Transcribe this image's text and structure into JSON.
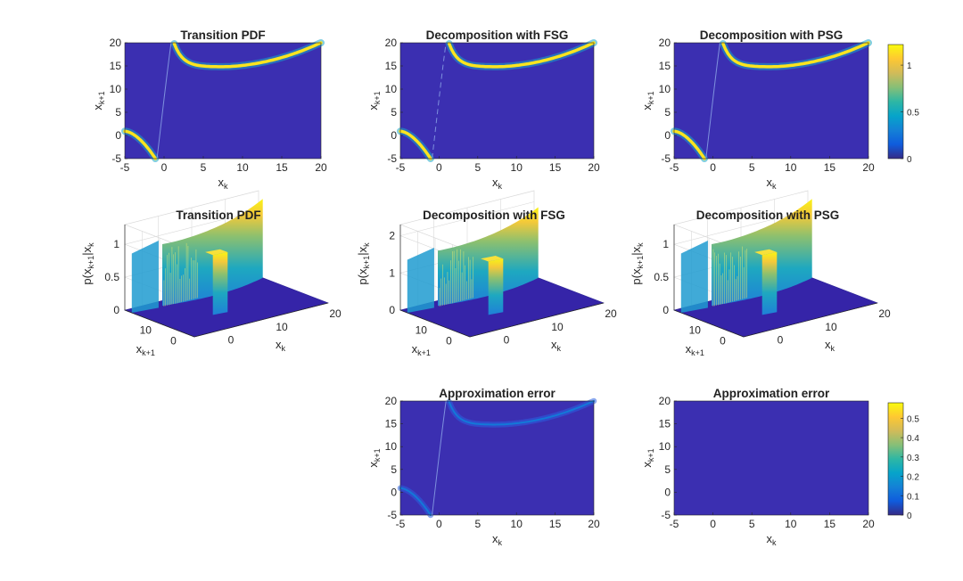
{
  "colors": {
    "background": "#3b2fb1",
    "gridline": "#d9d9d9",
    "axis": "#262626",
    "parula": [
      "#352a87",
      "#0f5cdd",
      "#1481d6",
      "#06a4ca",
      "#2eb7a4",
      "#87bf77",
      "#d1bb59",
      "#fec832",
      "#f9fb0e"
    ]
  },
  "chart_data": [
    {
      "id": "r1c1",
      "type": "heatmap",
      "title": "Transition PDF",
      "xlabel": "x_k",
      "ylabel": "x_k+1",
      "xlim": [
        -5,
        20
      ],
      "ylim": [
        -5,
        20
      ],
      "xticks": [
        "-5",
        "0",
        "5",
        "10",
        "15",
        "20"
      ],
      "yticks": [
        "-5",
        "0",
        "5",
        "10",
        "15",
        "20"
      ],
      "curve": "transition",
      "peak": 1.15
    },
    {
      "id": "r1c2",
      "type": "heatmap",
      "title": "Decomposition with FSG",
      "xlabel": "x_k",
      "ylabel": "x_k+1",
      "xlim": [
        -5,
        20
      ],
      "ylim": [
        -5,
        20
      ],
      "xticks": [
        "-5",
        "0",
        "5",
        "10",
        "15",
        "20"
      ],
      "yticks": [
        "-5",
        "0",
        "5",
        "10",
        "15",
        "20"
      ],
      "curve": "transition",
      "peak": 1.15
    },
    {
      "id": "r1c3",
      "type": "heatmap",
      "title": "Decomposition with PSG",
      "xlabel": "x_k",
      "ylabel": "x_k+1",
      "xlim": [
        -5,
        20
      ],
      "ylim": [
        -5,
        20
      ],
      "xticks": [
        "-5",
        "0",
        "5",
        "10",
        "15",
        "20"
      ],
      "yticks": [
        "-5",
        "0",
        "5",
        "10",
        "15",
        "20"
      ],
      "curve": "transition",
      "peak": 1.15,
      "colorbar": {
        "ticks": [
          "0",
          "0.5",
          "1"
        ],
        "values": [
          0,
          0.5,
          1
        ],
        "range": [
          0,
          1.22
        ]
      }
    },
    {
      "id": "r2c1",
      "type": "surface",
      "title": "Transition PDF",
      "zlabel": "p(x_k+1|x_k",
      "xlabel": "x_k",
      "ylabel": "x_k+1",
      "zticks": [
        "0",
        "0.5",
        "1"
      ],
      "ztickvalues": [
        0,
        0.5,
        1
      ],
      "zlim": [
        0,
        1.3
      ],
      "xticks": [
        "0",
        "10",
        "20"
      ],
      "yticks": [
        "0",
        "10"
      ],
      "peak": 1.2
    },
    {
      "id": "r2c2",
      "type": "surface",
      "title": "Decomposition with FSG",
      "zlabel": "p(x_k+1|x_k",
      "xlabel": "x_k",
      "ylabel": "x_k+1",
      "zticks": [
        "0",
        "1",
        "2"
      ],
      "ztickvalues": [
        0,
        1,
        2
      ],
      "zlim": [
        0,
        2.3
      ],
      "xticks": [
        "0",
        "10",
        "20"
      ],
      "yticks": [
        "0",
        "10"
      ],
      "peak": 1.9
    },
    {
      "id": "r2c3",
      "type": "surface",
      "title": "Decomposition with PSG",
      "zlabel": "p(x_k+1|x_k",
      "xlabel": "x_k",
      "ylabel": "x_k+1",
      "zticks": [
        "0",
        "0.5",
        "1"
      ],
      "ztickvalues": [
        0,
        0.5,
        1
      ],
      "zlim": [
        0,
        1.3
      ],
      "xticks": [
        "0",
        "10",
        "20"
      ],
      "yticks": [
        "0",
        "10"
      ],
      "peak": 1.2
    },
    {
      "id": "r3c2",
      "type": "heatmap",
      "title": "Approximation error",
      "xlabel": "x_k",
      "ylabel": "x_k+1",
      "xlim": [
        -5,
        20
      ],
      "ylim": [
        -5,
        20
      ],
      "xticks": [
        "-5",
        "0",
        "5",
        "10",
        "15",
        "20"
      ],
      "yticks": [
        "-5",
        "0",
        "5",
        "10",
        "15",
        "20"
      ],
      "curve": "transition",
      "peak": 0.12
    },
    {
      "id": "r3c3",
      "type": "heatmap",
      "title": "Approximation error",
      "xlabel": "x_k",
      "ylabel": "x_k+1",
      "xlim": [
        -5,
        20
      ],
      "ylim": [
        -5,
        20
      ],
      "xticks": [
        "-5",
        "0",
        "5",
        "10",
        "15",
        "20"
      ],
      "yticks": [
        "-5",
        "0",
        "5",
        "10",
        "15",
        "20"
      ],
      "curve": "none",
      "peak": 0,
      "colorbar": {
        "ticks": [
          "0",
          "0.1",
          "0.2",
          "0.3",
          "0.4",
          "0.5"
        ],
        "values": [
          0,
          0.1,
          0.2,
          0.3,
          0.4,
          0.5
        ],
        "range": [
          0,
          0.58
        ]
      }
    }
  ]
}
